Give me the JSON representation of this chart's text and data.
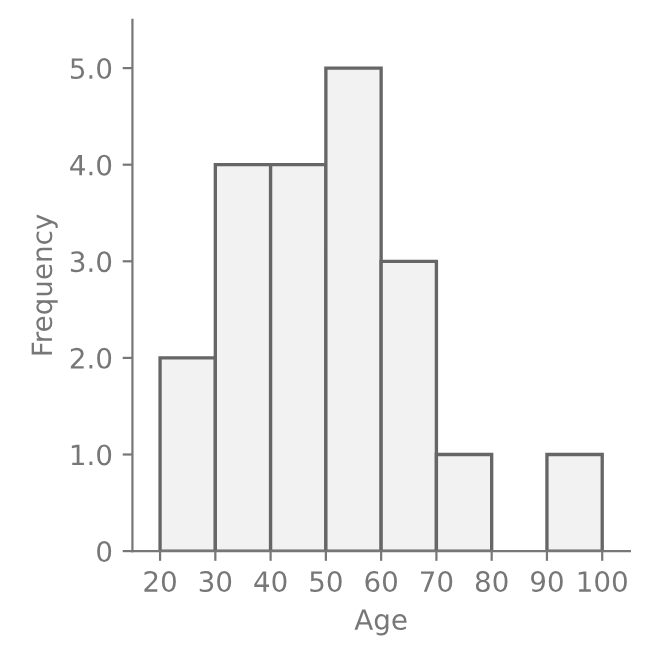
{
  "chart_data": {
    "type": "histogram",
    "xlabel": "Age",
    "ylabel": "Frequency",
    "bins": [
      20,
      30,
      40,
      50,
      60,
      70,
      80,
      90,
      100
    ],
    "values": [
      2,
      4,
      4,
      5,
      3,
      1,
      0,
      1
    ],
    "color": "#f2f2f2",
    "xlim": [
      15,
      105
    ],
    "ylim": [
      0,
      5.5
    ],
    "xticks": [
      20,
      30,
      40,
      50,
      60,
      70,
      80,
      90,
      100
    ],
    "yticks": [
      0,
      {
        "value": 1,
        "label": "1.0"
      },
      {
        "value": 2,
        "label": "2.0"
      },
      {
        "value": 3,
        "label": "3.0"
      },
      {
        "value": 4,
        "label": "4.0"
      },
      {
        "value": 5,
        "label": "5.0"
      }
    ],
    "grid": false
  }
}
